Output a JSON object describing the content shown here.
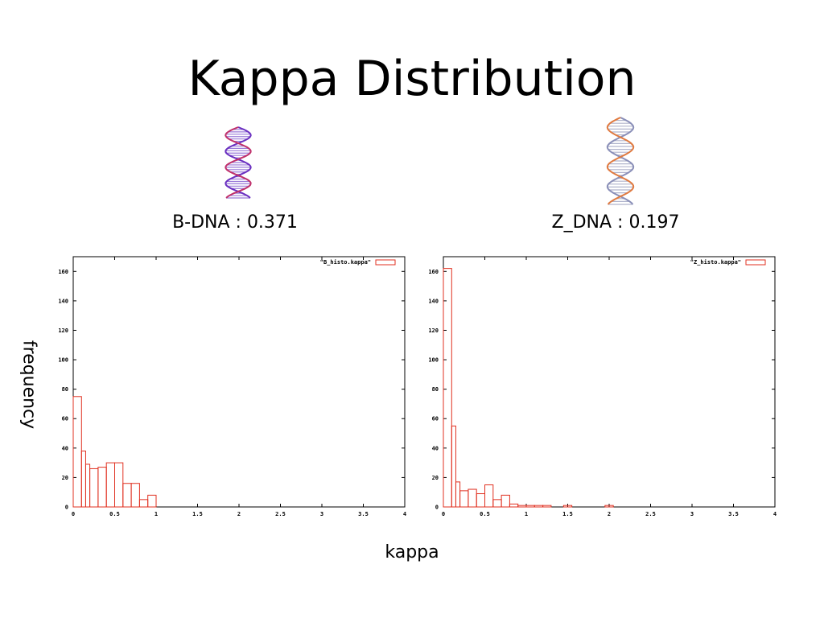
{
  "title": "Kappa Distribution",
  "ylabel": "frequency",
  "xlabel": "kappa",
  "colors": {
    "bar": "#e03020",
    "axis": "#000000"
  },
  "molecules": [
    {
      "name": "b-dna-molecule-image",
      "palette": [
        "#6a2fc0",
        "#c0306a",
        "#9a7ad8"
      ]
    },
    {
      "name": "z-dna-molecule-image",
      "palette": [
        "#8a8fb8",
        "#e07a40",
        "#b0b4cc"
      ]
    }
  ],
  "chart_data": [
    {
      "type": "bar",
      "label": "B-DNA : 0.371",
      "legend": "\"B_histo.kappa\"",
      "legend_position": "top-right",
      "xlim": [
        0,
        4
      ],
      "ylim": [
        0,
        170
      ],
      "xticks": [
        "0",
        "0.5",
        "1",
        "1.5",
        "2",
        "2.5",
        "3",
        "3.5",
        "4"
      ],
      "yticks": [
        "0",
        "20",
        "40",
        "60",
        "80",
        "100",
        "120",
        "140",
        "160"
      ],
      "bin_width": 0.1,
      "bins": [
        {
          "x": 0.0,
          "y": 75
        },
        {
          "x": 0.1,
          "y": 38
        },
        {
          "x": 0.15,
          "y": 29
        },
        {
          "x": 0.2,
          "y": 26
        },
        {
          "x": 0.3,
          "y": 27
        },
        {
          "x": 0.4,
          "y": 30
        },
        {
          "x": 0.5,
          "y": 30
        },
        {
          "x": 0.6,
          "y": 16
        },
        {
          "x": 0.7,
          "y": 16
        },
        {
          "x": 0.8,
          "y": 5
        },
        {
          "x": 0.9,
          "y": 8
        }
      ]
    },
    {
      "type": "bar",
      "label": "Z_DNA : 0.197",
      "legend": "\"Z_histo.kappa\"",
      "legend_position": "top-right",
      "xlim": [
        0,
        4
      ],
      "ylim": [
        0,
        170
      ],
      "xticks": [
        "0",
        "0.5",
        "1",
        "1.5",
        "2",
        "2.5",
        "3",
        "3.5",
        "4"
      ],
      "yticks": [
        "0",
        "20",
        "40",
        "60",
        "80",
        "100",
        "120",
        "140",
        "160"
      ],
      "bin_width": 0.1,
      "bins": [
        {
          "x": 0.0,
          "y": 162
        },
        {
          "x": 0.1,
          "y": 55
        },
        {
          "x": 0.15,
          "y": 17
        },
        {
          "x": 0.2,
          "y": 11
        },
        {
          "x": 0.3,
          "y": 12
        },
        {
          "x": 0.4,
          "y": 9
        },
        {
          "x": 0.5,
          "y": 15
        },
        {
          "x": 0.6,
          "y": 5
        },
        {
          "x": 0.7,
          "y": 8
        },
        {
          "x": 0.8,
          "y": 2
        },
        {
          "x": 0.9,
          "y": 1
        },
        {
          "x": 1.0,
          "y": 1
        },
        {
          "x": 1.1,
          "y": 1
        },
        {
          "x": 1.2,
          "y": 1
        },
        {
          "x": 1.45,
          "y": 1
        },
        {
          "x": 1.95,
          "y": 1
        }
      ]
    }
  ]
}
